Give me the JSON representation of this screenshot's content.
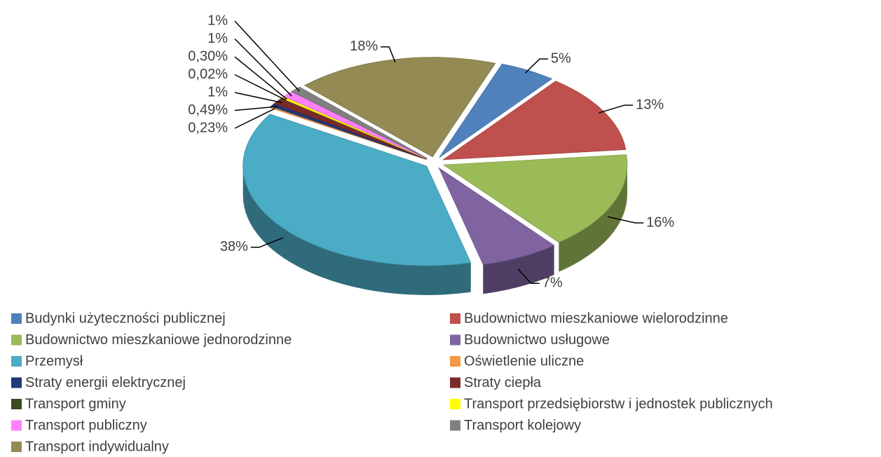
{
  "chart_data": {
    "type": "pie",
    "categories": [
      "Budynki użyteczności publicznej",
      "Budownictwo mieszkaniowe wielorodzinne",
      "Budownictwo mieszkaniowe jednorodzinne",
      "Budownictwo usługowe",
      "Przemysł",
      "Oświetlenie uliczne",
      "Straty energii elektrycznej",
      "Straty ciepła",
      "Transport gminy",
      "Transport przedsiębiorstw i jednostek publicznych",
      "Transport publiczny",
      "Transport kolejowy",
      "Transport indywidualny"
    ],
    "values": [
      5,
      13,
      16,
      7,
      38,
      0.23,
      0.49,
      1,
      0.02,
      0.3,
      1,
      1,
      18
    ],
    "value_labels": [
      "5%",
      "13%",
      "16%",
      "7%",
      "38%",
      "0,23%",
      "0,49%",
      "1%",
      "0,02%",
      "0,30%",
      "1%",
      "1%",
      "18%"
    ],
    "colors": [
      "#4f81bd",
      "#c0504d",
      "#9bbb59",
      "#8064a2",
      "#4bacc6",
      "#f79646",
      "#1f3a78",
      "#7b2a2a",
      "#3b4a20",
      "#ffff00",
      "#ff80ff",
      "#808080",
      "#948a54"
    ],
    "legend": "bottom"
  }
}
